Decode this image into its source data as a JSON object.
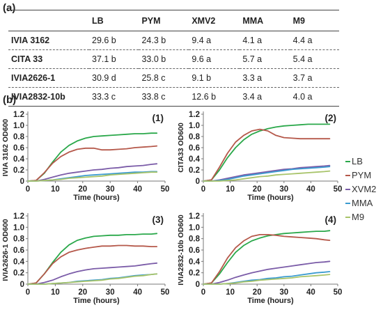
{
  "figure": {
    "panel_a_label": "(a)",
    "panel_b_label": "(b)"
  },
  "table": {
    "headers": [
      "",
      "LB",
      "PYM",
      "XMV2",
      "MMA",
      "M9"
    ],
    "rows": [
      {
        "strain": "IVIA 3162",
        "values": [
          "29.6 b",
          "24.3 b",
          "9.4 a",
          "4.1 a",
          "4.4 a"
        ]
      },
      {
        "strain": "CITA 33",
        "values": [
          "37.1 b",
          "33.0 b",
          "9.6 a",
          "5.7 a",
          "5.4 a"
        ]
      },
      {
        "strain": "IVIA2626-1",
        "values": [
          "30.9 d",
          "25.8 c",
          "9.1 b",
          "3.3 a",
          "3.7 a"
        ]
      },
      {
        "strain": "IVIA2832-10b",
        "values": [
          "33.3 c",
          "33.8 c",
          "12.6 b",
          "3.4 a",
          "4.0 a"
        ]
      }
    ]
  },
  "legend": {
    "placement": "right",
    "entries": [
      {
        "name": "LB",
        "color": "#2aa84a"
      },
      {
        "name": "PYM",
        "color": "#b5584a"
      },
      {
        "name": "XVM2",
        "color": "#7b5ca8"
      },
      {
        "name": "MMA",
        "color": "#3b9bd0"
      },
      {
        "name": "M9",
        "color": "#a8c46a"
      }
    ]
  },
  "chart_data": [
    {
      "type": "line",
      "panel_label": "(1)",
      "xlabel": "Time (hours)",
      "ylabel": "IVIA 3162 OD600",
      "xlim": [
        0,
        50
      ],
      "ylim": [
        0,
        1.2
      ],
      "xticks": [
        0,
        10,
        20,
        30,
        40,
        50
      ],
      "yticks": [
        0,
        0.2,
        0.4,
        0.6,
        0.8,
        1.0,
        1.2
      ],
      "series": [
        {
          "name": "LB",
          "x": [
            0,
            3,
            6,
            9,
            12,
            15,
            18,
            21,
            24,
            27,
            30,
            33,
            36,
            39,
            42,
            45,
            47
          ],
          "y": [
            0,
            0.01,
            0.14,
            0.34,
            0.52,
            0.64,
            0.72,
            0.77,
            0.8,
            0.81,
            0.82,
            0.83,
            0.84,
            0.85,
            0.85,
            0.86,
            0.86
          ]
        },
        {
          "name": "PYM",
          "x": [
            0,
            3,
            6,
            9,
            12,
            15,
            18,
            21,
            24,
            27,
            30,
            33,
            36,
            39,
            42,
            45,
            47
          ],
          "y": [
            0,
            0.01,
            0.15,
            0.32,
            0.44,
            0.52,
            0.57,
            0.59,
            0.59,
            0.56,
            0.56,
            0.57,
            0.58,
            0.6,
            0.61,
            0.62,
            0.63
          ]
        },
        {
          "name": "XVM2",
          "x": [
            0,
            3,
            6,
            9,
            12,
            15,
            18,
            21,
            24,
            27,
            30,
            33,
            36,
            39,
            42,
            45,
            47
          ],
          "y": [
            0,
            0,
            0.03,
            0.07,
            0.11,
            0.14,
            0.16,
            0.18,
            0.2,
            0.21,
            0.23,
            0.24,
            0.26,
            0.27,
            0.28,
            0.3,
            0.31
          ]
        },
        {
          "name": "MMA",
          "x": [
            0,
            3,
            6,
            9,
            12,
            15,
            18,
            21,
            24,
            27,
            30,
            33,
            36,
            39,
            42,
            45,
            47
          ],
          "y": [
            0,
            0,
            0.01,
            0.02,
            0.04,
            0.06,
            0.08,
            0.1,
            0.11,
            0.12,
            0.13,
            0.14,
            0.15,
            0.16,
            0.16,
            0.17,
            0.17
          ]
        },
        {
          "name": "M9",
          "x": [
            0,
            3,
            6,
            9,
            12,
            15,
            18,
            21,
            24,
            27,
            30,
            33,
            36,
            39,
            42,
            45,
            47
          ],
          "y": [
            0,
            0,
            0.01,
            0.02,
            0.03,
            0.05,
            0.06,
            0.07,
            0.08,
            0.09,
            0.11,
            0.12,
            0.13,
            0.14,
            0.15,
            0.16,
            0.16
          ]
        }
      ]
    },
    {
      "type": "line",
      "panel_label": "(2)",
      "xlabel": "Time (hours)",
      "ylabel": "CITA33 OD600",
      "xlim": [
        0,
        50
      ],
      "ylim": [
        0,
        1.2
      ],
      "xticks": [
        0,
        10,
        20,
        30,
        40,
        50
      ],
      "yticks": [
        0,
        0.2,
        0.4,
        0.6,
        0.8,
        1.0,
        1.2
      ],
      "series": [
        {
          "name": "LB",
          "x": [
            0,
            3,
            6,
            9,
            12,
            15,
            18,
            21,
            24,
            27,
            30,
            33,
            36,
            39,
            42,
            45,
            47
          ],
          "y": [
            0,
            0.02,
            0.2,
            0.42,
            0.6,
            0.74,
            0.84,
            0.9,
            0.94,
            0.97,
            0.99,
            1.0,
            1.01,
            1.02,
            1.02,
            1.02,
            1.02
          ]
        },
        {
          "name": "PYM",
          "x": [
            0,
            3,
            6,
            9,
            12,
            15,
            18,
            21,
            24,
            27,
            30,
            33,
            36,
            39,
            42,
            45,
            47
          ],
          "y": [
            0,
            0.02,
            0.25,
            0.5,
            0.7,
            0.82,
            0.9,
            0.93,
            0.9,
            0.82,
            0.78,
            0.77,
            0.76,
            0.76,
            0.76,
            0.76,
            0.76
          ]
        },
        {
          "name": "XVM2",
          "x": [
            0,
            3,
            6,
            9,
            12,
            15,
            18,
            21,
            24,
            27,
            30,
            33,
            36,
            39,
            42,
            45,
            47
          ],
          "y": [
            0,
            0,
            0.02,
            0.05,
            0.08,
            0.11,
            0.13,
            0.15,
            0.17,
            0.19,
            0.21,
            0.22,
            0.24,
            0.25,
            0.26,
            0.27,
            0.28
          ]
        },
        {
          "name": "MMA",
          "x": [
            0,
            3,
            6,
            9,
            12,
            15,
            18,
            21,
            24,
            27,
            30,
            33,
            36,
            39,
            42,
            45,
            47
          ],
          "y": [
            0,
            0,
            0.01,
            0.03,
            0.06,
            0.09,
            0.11,
            0.13,
            0.15,
            0.17,
            0.19,
            0.21,
            0.22,
            0.23,
            0.24,
            0.25,
            0.26
          ]
        },
        {
          "name": "M9",
          "x": [
            0,
            3,
            6,
            9,
            12,
            15,
            18,
            21,
            24,
            27,
            30,
            33,
            36,
            39,
            42,
            45,
            47
          ],
          "y": [
            0,
            0,
            0,
            0.01,
            0.02,
            0.04,
            0.06,
            0.08,
            0.09,
            0.11,
            0.12,
            0.13,
            0.14,
            0.15,
            0.16,
            0.17,
            0.18
          ]
        }
      ]
    },
    {
      "type": "line",
      "panel_label": "(3)",
      "xlabel": "Time (hours)",
      "ylabel": "IVIA2626-1 OD600",
      "xlim": [
        0,
        50
      ],
      "ylim": [
        0,
        1.2
      ],
      "xticks": [
        0,
        10,
        20,
        30,
        40,
        50
      ],
      "yticks": [
        0,
        0.2,
        0.4,
        0.6,
        0.8,
        1.0,
        1.2
      ],
      "series": [
        {
          "name": "LB",
          "x": [
            0,
            3,
            6,
            9,
            12,
            15,
            18,
            21,
            24,
            27,
            30,
            33,
            36,
            39,
            42,
            45,
            47
          ],
          "y": [
            0,
            0.02,
            0.18,
            0.38,
            0.56,
            0.69,
            0.77,
            0.81,
            0.84,
            0.85,
            0.86,
            0.86,
            0.87,
            0.87,
            0.88,
            0.88,
            0.89
          ]
        },
        {
          "name": "PYM",
          "x": [
            0,
            3,
            6,
            9,
            12,
            15,
            18,
            21,
            24,
            27,
            30,
            33,
            36,
            39,
            42,
            45,
            47
          ],
          "y": [
            0,
            0.02,
            0.18,
            0.36,
            0.48,
            0.56,
            0.6,
            0.63,
            0.65,
            0.67,
            0.67,
            0.68,
            0.68,
            0.67,
            0.67,
            0.66,
            0.66
          ]
        },
        {
          "name": "XVM2",
          "x": [
            0,
            3,
            6,
            9,
            12,
            15,
            18,
            21,
            24,
            27,
            30,
            33,
            36,
            39,
            42,
            45,
            47
          ],
          "y": [
            0,
            0,
            0.03,
            0.07,
            0.13,
            0.18,
            0.22,
            0.25,
            0.27,
            0.28,
            0.29,
            0.3,
            0.31,
            0.32,
            0.34,
            0.36,
            0.37
          ]
        },
        {
          "name": "MMA",
          "x": [
            0,
            3,
            6,
            9,
            12,
            15,
            18,
            21,
            24,
            27,
            30,
            33,
            36,
            39,
            42,
            45,
            47
          ],
          "y": [
            0,
            0,
            0,
            0.01,
            0.02,
            0.03,
            0.05,
            0.06,
            0.07,
            0.08,
            0.1,
            0.11,
            0.13,
            0.15,
            0.16,
            0.17,
            0.18
          ]
        },
        {
          "name": "M9",
          "x": [
            0,
            3,
            6,
            9,
            12,
            15,
            18,
            21,
            24,
            27,
            30,
            33,
            36,
            39,
            42,
            45,
            47
          ],
          "y": [
            0,
            0,
            0,
            0.01,
            0.02,
            0.03,
            0.04,
            0.05,
            0.06,
            0.07,
            0.09,
            0.1,
            0.12,
            0.14,
            0.15,
            0.17,
            0.18
          ]
        }
      ]
    },
    {
      "type": "line",
      "panel_label": "(4)",
      "xlabel": "Time (hours)",
      "ylabel": "IVIA2832-10b OD600",
      "xlim": [
        0,
        50
      ],
      "ylim": [
        0,
        1.2
      ],
      "xticks": [
        0,
        10,
        20,
        30,
        40,
        50
      ],
      "yticks": [
        0,
        0.2,
        0.4,
        0.6,
        0.8,
        1.0,
        1.2
      ],
      "series": [
        {
          "name": "LB",
          "x": [
            0,
            3,
            6,
            9,
            12,
            15,
            18,
            21,
            24,
            27,
            30,
            33,
            36,
            39,
            42,
            45,
            47
          ],
          "y": [
            0,
            0.02,
            0.18,
            0.38,
            0.56,
            0.68,
            0.76,
            0.81,
            0.85,
            0.87,
            0.89,
            0.9,
            0.91,
            0.92,
            0.93,
            0.93,
            0.94
          ]
        },
        {
          "name": "PYM",
          "x": [
            0,
            3,
            6,
            9,
            12,
            15,
            18,
            21,
            24,
            27,
            30,
            33,
            36,
            39,
            42,
            45,
            47
          ],
          "y": [
            0,
            0.02,
            0.22,
            0.46,
            0.64,
            0.76,
            0.84,
            0.87,
            0.87,
            0.86,
            0.84,
            0.83,
            0.82,
            0.81,
            0.8,
            0.78,
            0.77
          ]
        },
        {
          "name": "XVM2",
          "x": [
            0,
            3,
            6,
            9,
            12,
            15,
            18,
            21,
            24,
            27,
            30,
            33,
            36,
            39,
            42,
            45,
            47
          ],
          "y": [
            0,
            0,
            0.03,
            0.07,
            0.12,
            0.16,
            0.2,
            0.23,
            0.26,
            0.28,
            0.3,
            0.32,
            0.34,
            0.36,
            0.38,
            0.39,
            0.4
          ]
        },
        {
          "name": "MMA",
          "x": [
            0,
            3,
            6,
            9,
            12,
            15,
            18,
            21,
            24,
            27,
            30,
            33,
            36,
            39,
            42,
            45,
            47
          ],
          "y": [
            0,
            0,
            0,
            0.01,
            0.03,
            0.05,
            0.07,
            0.08,
            0.1,
            0.11,
            0.13,
            0.14,
            0.16,
            0.18,
            0.2,
            0.21,
            0.22
          ]
        },
        {
          "name": "M9",
          "x": [
            0,
            3,
            6,
            9,
            12,
            15,
            18,
            21,
            24,
            27,
            30,
            33,
            36,
            39,
            42,
            45,
            47
          ],
          "y": [
            0,
            0,
            0,
            0.01,
            0.02,
            0.04,
            0.05,
            0.07,
            0.08,
            0.09,
            0.1,
            0.11,
            0.13,
            0.14,
            0.15,
            0.16,
            0.17
          ]
        }
      ]
    }
  ]
}
